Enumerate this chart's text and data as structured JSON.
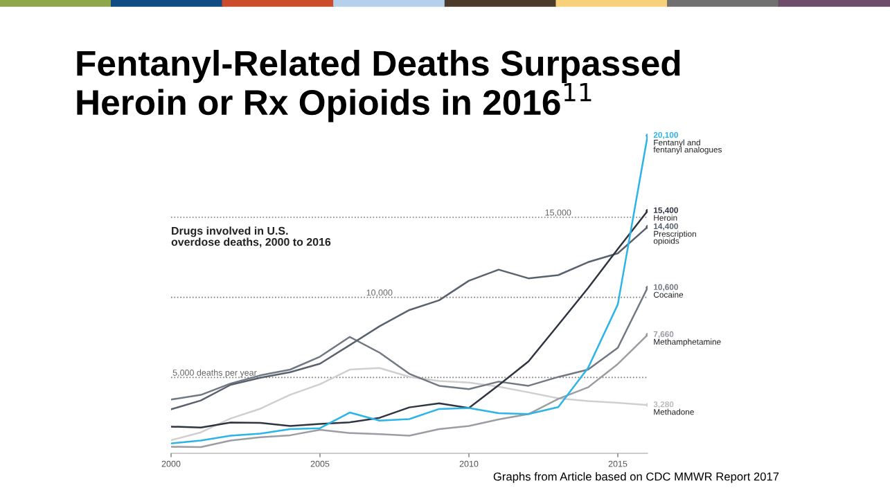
{
  "chart_data": {
    "type": "line",
    "title": "Fentanyl-Related Deaths Surpassed\nHeroin or Rx Opioids in 2016$^{11}$",
    "subtitle": "Drugs involved in U.S.\noverdose deaths, 2000 to 2016",
    "annotations": [
      "Graphs from Article based on CDC MMWR Report 2017"
    ],
    "x": [
      2000,
      2001,
      2002,
      2003,
      2004,
      2005,
      2006,
      2007,
      2008,
      2009,
      2010,
      2011,
      2012,
      2013,
      2014,
      2015,
      2016
    ],
    "series": [
      {
        "name": "Methadone",
        "color": "#cfcfcf",
        "values": [
          1080,
          1570,
          2440,
          3050,
          3920,
          4580,
          5490,
          5590,
          5040,
          4780,
          4680,
          4420,
          4070,
          3700,
          3520,
          3420,
          3280
        ],
        "value_labels": [
          null,
          null,
          null,
          null,
          null,
          null,
          null,
          null,
          null,
          null,
          null,
          null,
          null,
          null,
          null,
          null,
          "3,280"
        ]
      },
      {
        "name": "Methamphetamine",
        "color": "#9a9da2",
        "values": [
          670,
          650,
          1060,
          1270,
          1390,
          1730,
          1530,
          1460,
          1360,
          1770,
          1970,
          2380,
          2710,
          3660,
          4380,
          5840,
          7660
        ],
        "value_labels": [
          null,
          null,
          null,
          null,
          null,
          null,
          null,
          null,
          null,
          null,
          null,
          null,
          null,
          null,
          null,
          null,
          "7,660"
        ]
      },
      {
        "name": "Cocaine",
        "color": "#707882",
        "values": [
          3620,
          3910,
          4620,
          5130,
          5490,
          6300,
          7530,
          6550,
          5230,
          4480,
          4270,
          4740,
          4480,
          5030,
          5490,
          6850,
          10600
        ],
        "value_labels": [
          null,
          null,
          null,
          null,
          null,
          null,
          null,
          null,
          null,
          null,
          null,
          null,
          null,
          null,
          null,
          null,
          "10,600"
        ]
      },
      {
        "name": "Prescription\nopioids",
        "color": "#58626e",
        "values": [
          3010,
          3560,
          4540,
          4980,
          5330,
          5860,
          7020,
          8200,
          9210,
          9820,
          11040,
          11730,
          11190,
          11390,
          12200,
          12750,
          14400
        ],
        "value_labels": [
          null,
          null,
          null,
          null,
          null,
          null,
          null,
          null,
          null,
          null,
          null,
          null,
          null,
          null,
          null,
          null,
          "14,400"
        ]
      },
      {
        "name": "Heroin",
        "color": "#2f3540",
        "values": [
          1930,
          1870,
          2180,
          2160,
          1970,
          2100,
          2200,
          2480,
          3130,
          3380,
          3090,
          4520,
          6000,
          8280,
          10580,
          13020,
          15400
        ],
        "value_labels": [
          null,
          null,
          null,
          null,
          null,
          null,
          null,
          null,
          null,
          null,
          null,
          null,
          null,
          null,
          null,
          null,
          "15,400"
        ]
      },
      {
        "name": "Fentanyl and\nfentanyl analogues",
        "color": "#2ab4e8",
        "values": [
          880,
          1060,
          1360,
          1490,
          1770,
          1830,
          2810,
          2300,
          2400,
          3030,
          3090,
          2770,
          2710,
          3150,
          5590,
          9560,
          20100
        ],
        "value_labels": [
          null,
          null,
          null,
          null,
          null,
          null,
          null,
          null,
          null,
          null,
          null,
          null,
          null,
          null,
          null,
          null,
          "20,100"
        ]
      }
    ],
    "xlim": [
      2000,
      2016
    ],
    "xticks": [
      2000,
      2005,
      2010,
      2015
    ],
    "tick_labels": "x",
    "ref_lines": [
      {
        "axis": "y",
        "value": 5000,
        "label": "5,000 deaths per year",
        "color": "#777777",
        "line_style": "dotted"
      },
      {
        "axis": "y",
        "value": 10000,
        "label": "10,000",
        "color": "#777777",
        "line_style": "dotted"
      },
      {
        "axis": "y",
        "value": 15000,
        "label": "15,000",
        "color": "#777777",
        "line_style": "dotted"
      }
    ],
    "grid": false,
    "legend": false,
    "marker": "none",
    "line_style": "solid"
  }
}
